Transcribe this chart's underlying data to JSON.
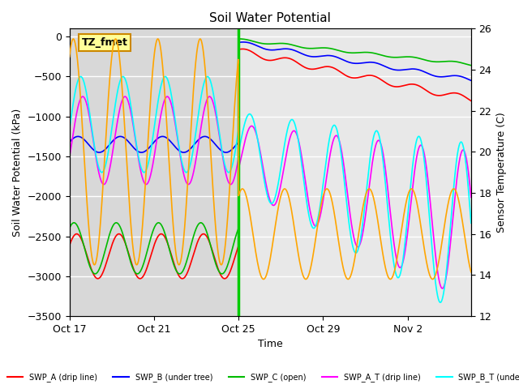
{
  "title": "Soil Water Potential",
  "ylabel_left": "Soil Water Potential (kPa)",
  "ylabel_right": "Sensor Temperature (C)",
  "xlabel": "Time",
  "ylim_left": [
    -3500,
    100
  ],
  "ylim_right": [
    12,
    26
  ],
  "yticks_left": [
    0,
    -500,
    -1000,
    -1500,
    -2000,
    -2500,
    -3000,
    -3500
  ],
  "yticks_right": [
    12,
    14,
    16,
    18,
    20,
    22,
    24,
    26
  ],
  "box_label": "TZ_fmet",
  "box_color": "#ffff99",
  "box_edge": "#cc8800",
  "xticklabels": [
    "Oct 17",
    "Oct 21",
    "Oct 25",
    "Oct 29",
    "Nov 2"
  ],
  "xtick_positions": [
    0,
    4,
    8,
    12,
    16
  ],
  "total_days": 19,
  "irr_day": 8.0
}
